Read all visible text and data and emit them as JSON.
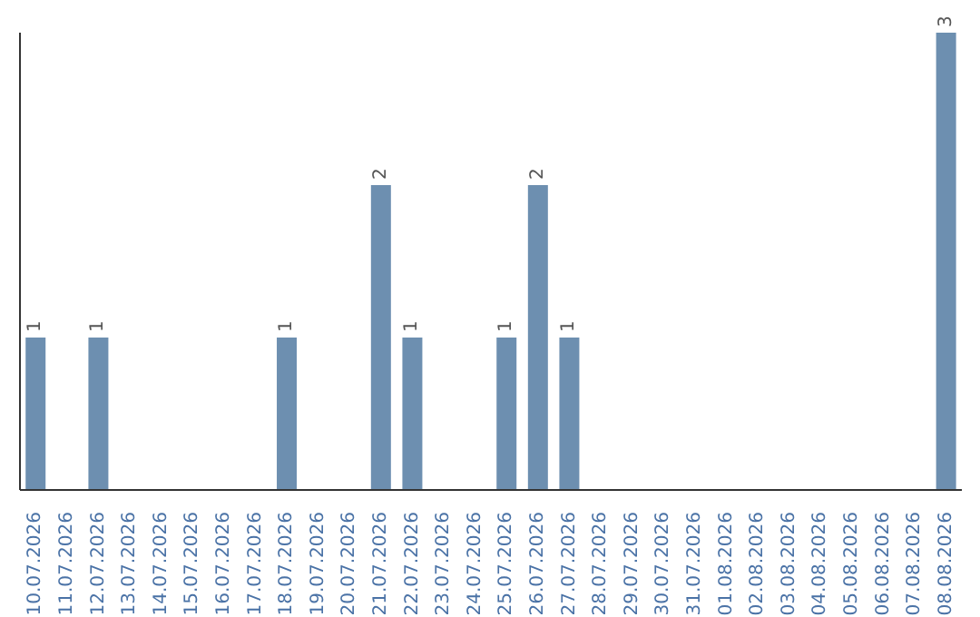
{
  "chart_data": {
    "type": "bar",
    "categories": [
      "10.07.2026",
      "11.07.2026",
      "12.07.2026",
      "13.07.2026",
      "14.07.2026",
      "15.07.2026",
      "16.07.2026",
      "17.07.2026",
      "18.07.2026",
      "19.07.2026",
      "20.07.2026",
      "21.07.2026",
      "22.07.2026",
      "23.07.2026",
      "24.07.2026",
      "25.07.2026",
      "26.07.2026",
      "27.07.2026",
      "28.07.2026",
      "29.07.2026",
      "30.07.2026",
      "31.07.2026",
      "01.08.2026",
      "02.08.2026",
      "03.08.2026",
      "04.08.2026",
      "05.08.2026",
      "06.08.2026",
      "07.08.2026",
      "08.08.2026"
    ],
    "values": [
      1,
      null,
      1,
      null,
      null,
      null,
      null,
      null,
      1,
      null,
      null,
      2,
      1,
      null,
      null,
      1,
      2,
      1,
      null,
      null,
      null,
      null,
      null,
      null,
      null,
      null,
      null,
      null,
      null,
      3
    ],
    "color": "#6d8fb0",
    "data_labels": true,
    "tick_labels": "x",
    "grid": false,
    "legend": false
  }
}
